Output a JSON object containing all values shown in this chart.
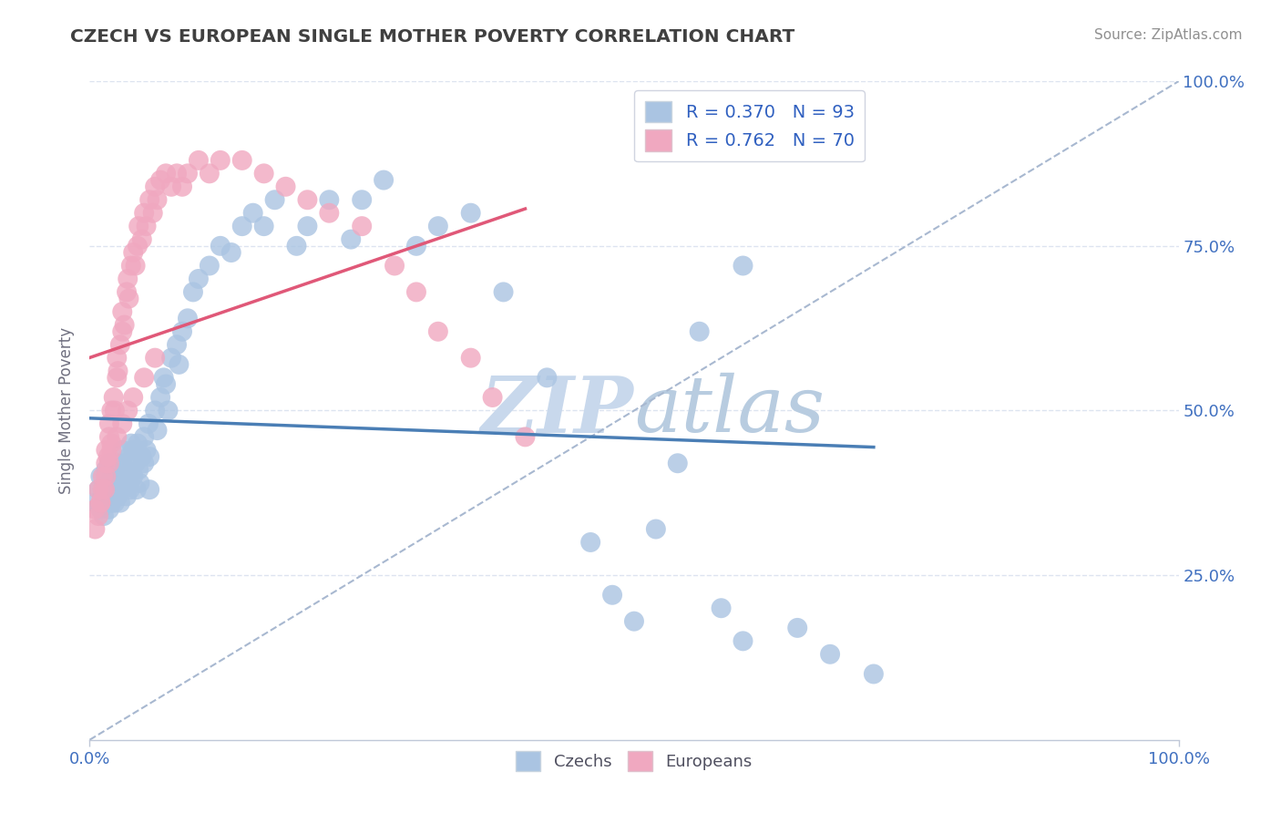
{
  "title": "CZECH VS EUROPEAN SINGLE MOTHER POVERTY CORRELATION CHART",
  "source": "Source: ZipAtlas.com",
  "ylabel": "Single Mother Poverty",
  "czech_R": 0.37,
  "czech_N": 93,
  "european_R": 0.762,
  "european_N": 70,
  "czech_color": "#aac4e2",
  "european_color": "#f0a8c0",
  "czech_line_color": "#4a7eb5",
  "european_line_color": "#e05878",
  "diagonal_color": "#a8b8d0",
  "title_color": "#404040",
  "legend_text_color": "#3060c0",
  "axis_tick_color": "#4070c0",
  "watermark_zip_color": "#c8d4e8",
  "watermark_atlas_color": "#b0c8e0",
  "grid_color": "#dde4f0",
  "background_color": "#ffffff",
  "czech_points_x": [
    0.005,
    0.008,
    0.01,
    0.01,
    0.012,
    0.013,
    0.015,
    0.015,
    0.016,
    0.017,
    0.018,
    0.018,
    0.018,
    0.02,
    0.02,
    0.02,
    0.022,
    0.022,
    0.023,
    0.024,
    0.025,
    0.025,
    0.026,
    0.027,
    0.028,
    0.028,
    0.03,
    0.03,
    0.03,
    0.032,
    0.033,
    0.034,
    0.035,
    0.036,
    0.037,
    0.038,
    0.04,
    0.04,
    0.042,
    0.043,
    0.044,
    0.045,
    0.046,
    0.048,
    0.05,
    0.05,
    0.052,
    0.054,
    0.055,
    0.055,
    0.06,
    0.062,
    0.065,
    0.068,
    0.07,
    0.072,
    0.075,
    0.08,
    0.082,
    0.085,
    0.09,
    0.095,
    0.1,
    0.11,
    0.12,
    0.13,
    0.14,
    0.15,
    0.16,
    0.17,
    0.19,
    0.2,
    0.22,
    0.24,
    0.25,
    0.27,
    0.3,
    0.32,
    0.35,
    0.38,
    0.42,
    0.46,
    0.48,
    0.5,
    0.52,
    0.54,
    0.56,
    0.58,
    0.6,
    0.6,
    0.65,
    0.68,
    0.72
  ],
  "czech_points_y": [
    0.36,
    0.38,
    0.35,
    0.4,
    0.37,
    0.34,
    0.38,
    0.41,
    0.36,
    0.39,
    0.35,
    0.37,
    0.42,
    0.36,
    0.38,
    0.4,
    0.37,
    0.39,
    0.36,
    0.4,
    0.38,
    0.42,
    0.37,
    0.39,
    0.36,
    0.41,
    0.38,
    0.42,
    0.44,
    0.39,
    0.41,
    0.37,
    0.4,
    0.43,
    0.38,
    0.45,
    0.4,
    0.44,
    0.42,
    0.38,
    0.45,
    0.41,
    0.39,
    0.43,
    0.46,
    0.42,
    0.44,
    0.48,
    0.43,
    0.38,
    0.5,
    0.47,
    0.52,
    0.55,
    0.54,
    0.5,
    0.58,
    0.6,
    0.57,
    0.62,
    0.64,
    0.68,
    0.7,
    0.72,
    0.75,
    0.74,
    0.78,
    0.8,
    0.78,
    0.82,
    0.75,
    0.78,
    0.82,
    0.76,
    0.82,
    0.85,
    0.75,
    0.78,
    0.8,
    0.68,
    0.55,
    0.3,
    0.22,
    0.18,
    0.32,
    0.42,
    0.62,
    0.2,
    0.15,
    0.72,
    0.17,
    0.13,
    0.1
  ],
  "european_points_x": [
    0.005,
    0.008,
    0.01,
    0.012,
    0.014,
    0.015,
    0.015,
    0.017,
    0.018,
    0.018,
    0.02,
    0.02,
    0.022,
    0.023,
    0.025,
    0.025,
    0.026,
    0.028,
    0.03,
    0.03,
    0.032,
    0.034,
    0.035,
    0.036,
    0.038,
    0.04,
    0.042,
    0.044,
    0.045,
    0.048,
    0.05,
    0.052,
    0.055,
    0.058,
    0.06,
    0.062,
    0.065,
    0.07,
    0.075,
    0.08,
    0.085,
    0.09,
    0.1,
    0.11,
    0.12,
    0.14,
    0.16,
    0.18,
    0.2,
    0.22,
    0.25,
    0.28,
    0.3,
    0.32,
    0.35,
    0.37,
    0.4,
    0.005,
    0.008,
    0.01,
    0.012,
    0.015,
    0.018,
    0.02,
    0.025,
    0.03,
    0.035,
    0.04,
    0.05,
    0.06
  ],
  "european_points_y": [
    0.35,
    0.38,
    0.36,
    0.4,
    0.38,
    0.42,
    0.44,
    0.43,
    0.46,
    0.48,
    0.45,
    0.5,
    0.52,
    0.5,
    0.55,
    0.58,
    0.56,
    0.6,
    0.62,
    0.65,
    0.63,
    0.68,
    0.7,
    0.67,
    0.72,
    0.74,
    0.72,
    0.75,
    0.78,
    0.76,
    0.8,
    0.78,
    0.82,
    0.8,
    0.84,
    0.82,
    0.85,
    0.86,
    0.84,
    0.86,
    0.84,
    0.86,
    0.88,
    0.86,
    0.88,
    0.88,
    0.86,
    0.84,
    0.82,
    0.8,
    0.78,
    0.72,
    0.68,
    0.62,
    0.58,
    0.52,
    0.46,
    0.32,
    0.34,
    0.36,
    0.38,
    0.4,
    0.42,
    0.44,
    0.46,
    0.48,
    0.5,
    0.52,
    0.55,
    0.58
  ]
}
